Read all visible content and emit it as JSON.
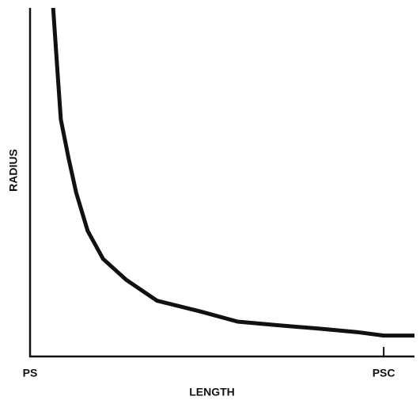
{
  "chart_data": {
    "type": "line",
    "xlabel": "LENGTH",
    "ylabel": "RADIUS",
    "x": [
      0.06,
      0.07,
      0.08,
      0.1,
      0.12,
      0.15,
      0.19,
      0.25,
      0.33,
      0.44,
      0.54,
      0.64,
      0.75,
      0.85,
      0.92,
      1.0
    ],
    "values": [
      1.0,
      0.84,
      0.68,
      0.57,
      0.47,
      0.36,
      0.28,
      0.22,
      0.16,
      0.13,
      0.1,
      0.09,
      0.08,
      0.07,
      0.06,
      0.06
    ],
    "color": "#111111",
    "xlim": [
      0,
      1
    ],
    "ylim": [
      0,
      1
    ],
    "xticks": [
      {
        "value": 0,
        "label": "PS"
      },
      {
        "value": 0.92,
        "label": "PSC"
      }
    ]
  }
}
